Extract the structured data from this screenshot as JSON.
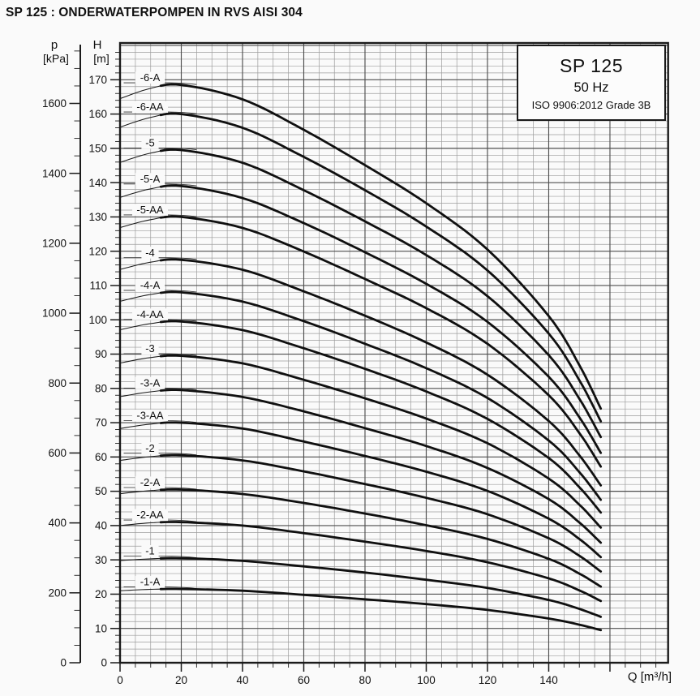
{
  "page": {
    "title": "SP 125 : ONDERWATERPOMPEN IN RVS AISI 304",
    "background": "#fafafa"
  },
  "legend": {
    "model": "SP 125",
    "frequency": "50 Hz",
    "standard": "ISO 9906:2012 Grade 3B"
  },
  "axes": {
    "pressure_axis": {
      "symbol": "p",
      "unit": "[kPa]",
      "tick_labels": [
        1600,
        1400,
        1200,
        1000,
        800,
        600,
        400,
        200,
        0
      ],
      "minor_step_kpa": 50,
      "minor_max_kpa": 1750
    },
    "head_axis": {
      "symbol": "H",
      "unit": "[m]",
      "tick_labels": [
        170,
        160,
        150,
        140,
        130,
        120,
        110,
        100,
        90,
        80,
        70,
        60,
        50,
        40,
        30,
        20,
        10,
        0
      ],
      "minor_step_m": 2
    },
    "flow_axis": {
      "label": "Q [m³/h]",
      "tick_labels": [
        0,
        20,
        40,
        60,
        80,
        100,
        120,
        140
      ],
      "unlabeled_tick": 160,
      "minor_step_m3h": 5
    }
  },
  "chart_data": {
    "type": "line",
    "title": "SP 125",
    "subtitle": "50 Hz",
    "standard": "ISO 9906:2012 Grade 3B",
    "xlabel": "Q [m³/h]",
    "ylabel_primary": "H [m]",
    "ylabel_secondary": "p [kPa]",
    "xlim": [
      0,
      179
    ],
    "ylim": [
      0,
      181
    ],
    "grid": "on",
    "legend_position": "top-right",
    "pressure_to_head_ratio_kpa_per_m": 9.81,
    "recommended_range_q_m3h": [
      13,
      157
    ],
    "q_m3h": [
      0,
      10,
      20,
      40,
      60,
      80,
      100,
      120,
      140,
      150,
      157
    ],
    "series": [
      {
        "name": "-6-A",
        "h_m": [
          164.5,
          167.5,
          168.5,
          164.3,
          155.4,
          145.1,
          134.0,
          120.5,
          101.1,
          86.8,
          74.1
        ]
      },
      {
        "name": "-6-AA",
        "h_m": [
          156.2,
          159.0,
          160.0,
          156.0,
          147.5,
          137.8,
          127.2,
          114.4,
          96.0,
          82.4,
          70.4
        ]
      },
      {
        "name": "-5",
        "h_m": [
          145.9,
          148.6,
          149.5,
          145.8,
          137.8,
          128.7,
          118.9,
          106.9,
          89.7,
          77.0,
          65.8
        ]
      },
      {
        "name": "-5-A",
        "h_m": [
          135.7,
          138.2,
          139.0,
          135.5,
          128.2,
          119.7,
          110.5,
          99.4,
          83.4,
          71.6,
          61.2
        ]
      },
      {
        "name": "-5-AA",
        "h_m": [
          126.9,
          129.2,
          130.0,
          126.8,
          119.9,
          111.9,
          103.4,
          93.0,
          78.0,
          67.0,
          57.2
        ]
      },
      {
        "name": "-4",
        "h_m": [
          114.7,
          116.8,
          117.5,
          114.6,
          108.3,
          101.2,
          93.4,
          84.0,
          70.5,
          60.5,
          51.7
        ]
      },
      {
        "name": "-4-A",
        "h_m": [
          105.4,
          107.4,
          108.0,
          105.3,
          99.6,
          93.0,
          85.9,
          77.2,
          64.8,
          55.6,
          47.5
        ]
      },
      {
        "name": "-4-AA",
        "h_m": [
          97.1,
          98.9,
          99.5,
          97.0,
          91.7,
          85.7,
          79.1,
          71.1,
          59.7,
          51.2,
          43.8
        ]
      },
      {
        "name": "-3",
        "h_m": [
          87.4,
          89.0,
          89.5,
          87.3,
          82.5,
          77.1,
          71.2,
          64.0,
          53.7,
          46.1,
          39.4
        ]
      },
      {
        "name": "-3-A",
        "h_m": [
          77.6,
          79.0,
          79.5,
          77.5,
          73.3,
          68.4,
          63.2,
          56.8,
          47.7,
          40.9,
          35.0
        ]
      },
      {
        "name": "-3-AA",
        "h_m": [
          68.3,
          69.6,
          70.0,
          68.3,
          64.5,
          60.3,
          55.7,
          50.1,
          42.0,
          36.1,
          30.8
        ]
      },
      {
        "name": "-2",
        "h_m": [
          59.0,
          60.1,
          60.5,
          59.0,
          55.8,
          52.1,
          48.1,
          43.3,
          36.3,
          31.2,
          26.6
        ]
      },
      {
        "name": "-2-A",
        "h_m": [
          49.3,
          50.2,
          50.5,
          49.2,
          46.6,
          43.5,
          40.1,
          36.1,
          30.3,
          26.0,
          22.2
        ]
      },
      {
        "name": "-2-AA",
        "h_m": [
          40.0,
          40.8,
          41.0,
          40.0,
          37.8,
          35.3,
          32.6,
          29.3,
          24.6,
          21.1,
          18.0
        ]
      },
      {
        "name": "-1",
        "h_m": [
          29.8,
          30.3,
          30.5,
          29.7,
          28.1,
          26.3,
          24.2,
          21.8,
          18.3,
          15.7,
          13.4
        ]
      },
      {
        "name": "-1-A",
        "h_m": [
          21.0,
          21.4,
          21.5,
          21.0,
          19.8,
          18.5,
          17.1,
          15.4,
          12.9,
          11.1,
          9.5
        ]
      }
    ]
  }
}
